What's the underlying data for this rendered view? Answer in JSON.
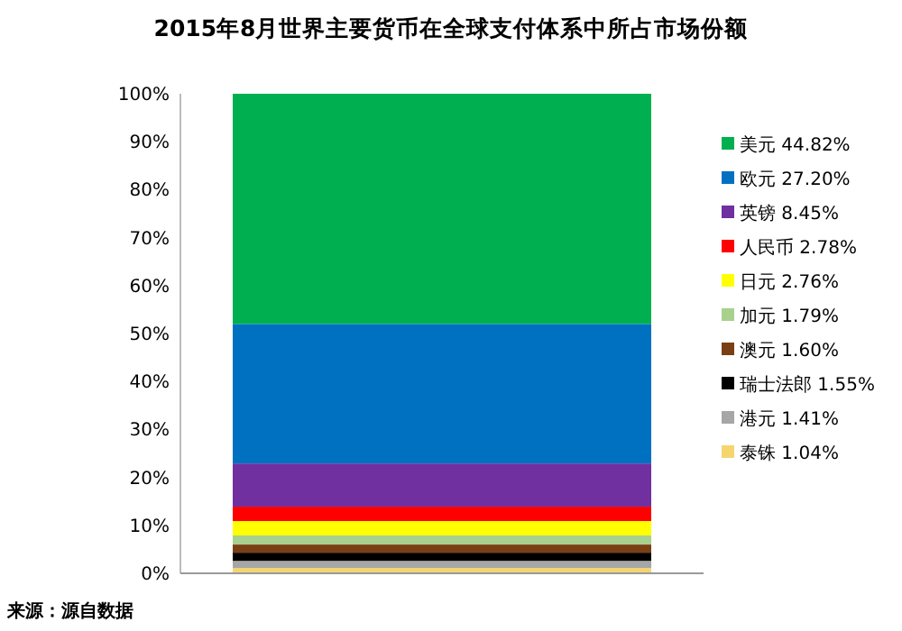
{
  "chart_data": {
    "type": "bar",
    "stacked": true,
    "title": "2015年8月世界主要货币在全球支付体系中所占市场份额",
    "categories": [
      null
    ],
    "series": [
      {
        "name": "泰铢 1.04%",
        "color": "#f5d56e",
        "values": [
          1.1
        ]
      },
      {
        "name": "港元 1.41%",
        "color": "#a6a6a6",
        "values": [
          1.5
        ]
      },
      {
        "name": "瑞士法郎 1.55%",
        "color": "#000000",
        "values": [
          1.7
        ]
      },
      {
        "name": "澳元 1.60%",
        "color": "#7b3f14",
        "values": [
          1.7
        ]
      },
      {
        "name": "加元 1.79%",
        "color": "#a9d18e",
        "values": [
          1.9
        ]
      },
      {
        "name": "日元 2.76%",
        "color": "#ffff00",
        "values": [
          3.0
        ]
      },
      {
        "name": "人民币 2.78%",
        "color": "#ff0000",
        "values": [
          3.0
        ]
      },
      {
        "name": "英镑 8.45%",
        "color": "#7030a0",
        "values": [
          9.0
        ]
      },
      {
        "name": "欧元 27.20%",
        "color": "#0070c0",
        "values": [
          29.1
        ]
      },
      {
        "name": "美元 44.82%",
        "color": "#00b050",
        "values": [
          48.0
        ]
      }
    ],
    "ylim": [
      0,
      100
    ],
    "yticks": [
      {
        "value": 0,
        "label": "0%"
      },
      {
        "value": 10,
        "label": "10%"
      },
      {
        "value": 20,
        "label": "20%"
      },
      {
        "value": 30,
        "label": "30%"
      },
      {
        "value": 40,
        "label": "40%"
      },
      {
        "value": 50,
        "label": "50%"
      },
      {
        "value": 60,
        "label": "60%"
      },
      {
        "value": 70,
        "label": "70%"
      },
      {
        "value": 80,
        "label": "80%"
      },
      {
        "value": 90,
        "label": "90%"
      },
      {
        "value": 100,
        "label": "100%"
      }
    ],
    "grid": false,
    "legend": "right",
    "annotations": [
      "来源：源自数据"
    ]
  }
}
